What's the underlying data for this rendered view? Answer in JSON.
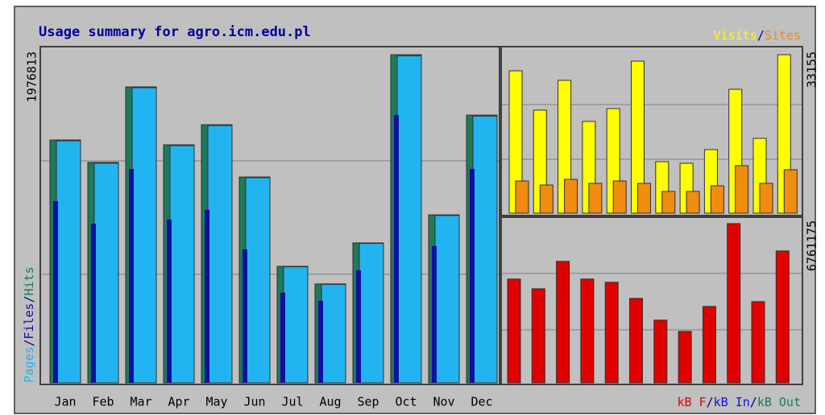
{
  "chart_data": [
    {
      "type": "bar",
      "title": "Usage summary for agro.icm.edu.pl",
      "categories": [
        "Jan",
        "Feb",
        "Mar",
        "Apr",
        "May",
        "Jun",
        "Jul",
        "Aug",
        "Sep",
        "Oct",
        "Nov",
        "Dec"
      ],
      "legend_separator": "/",
      "series": [
        {
          "name": "Hits",
          "color": "#1e7a5a",
          "values": [
            1463000,
            1328000,
            1783000,
            1434000,
            1555000,
            1240000,
            702000,
            596000,
            843000,
            1976813,
            1012000,
            1613000
          ]
        },
        {
          "name": "Pages",
          "color": "#22b4f0",
          "values": [
            1458000,
            1323000,
            1778000,
            1429000,
            1550000,
            1236000,
            699000,
            593000,
            840000,
            1970000,
            1008000,
            1607000
          ]
        },
        {
          "name": "Files",
          "color": "#1010a0",
          "values": [
            1095000,
            959000,
            1289000,
            984000,
            1042000,
            804000,
            543000,
            494000,
            678000,
            1613000,
            824000,
            1289000
          ]
        }
      ],
      "ylim": [
        0,
        1976813
      ],
      "yticks": [
        1976813
      ]
    },
    {
      "type": "bar",
      "legend_separator": "/",
      "series": [
        {
          "name": "Visits",
          "color": "#ffff00",
          "values": [
            29780,
            21550,
            27780,
            19190,
            21880,
            31800,
            10770,
            10440,
            13300,
            25920,
            15650,
            33155
          ]
        },
        {
          "name": "Sites",
          "color": "#f08c10",
          "values": [
            6730,
            5890,
            7070,
            6230,
            6730,
            6230,
            4540,
            4540,
            5720,
            9930,
            6230,
            9090
          ]
        }
      ],
      "ylim": [
        0,
        33155
      ],
      "yticks": [
        33155
      ]
    },
    {
      "type": "bar",
      "legend_separator": "/",
      "series": [
        {
          "name": "kB F",
          "color": "#e00000",
          "values": [
            4406000,
            3995000,
            5157000,
            4406000,
            4269000,
            3585000,
            2663000,
            2185000,
            3244000,
            6761175,
            3449000,
            5600000
          ]
        }
      ],
      "legend": [
        {
          "name": "kB F",
          "color": "#e00000"
        },
        {
          "name": "kB In",
          "color": "#1010e0"
        },
        {
          "name": "kB Out",
          "color": "#1e7a5a"
        }
      ],
      "ylim": [
        0,
        6761175
      ],
      "yticks": [
        6761175
      ]
    }
  ]
}
